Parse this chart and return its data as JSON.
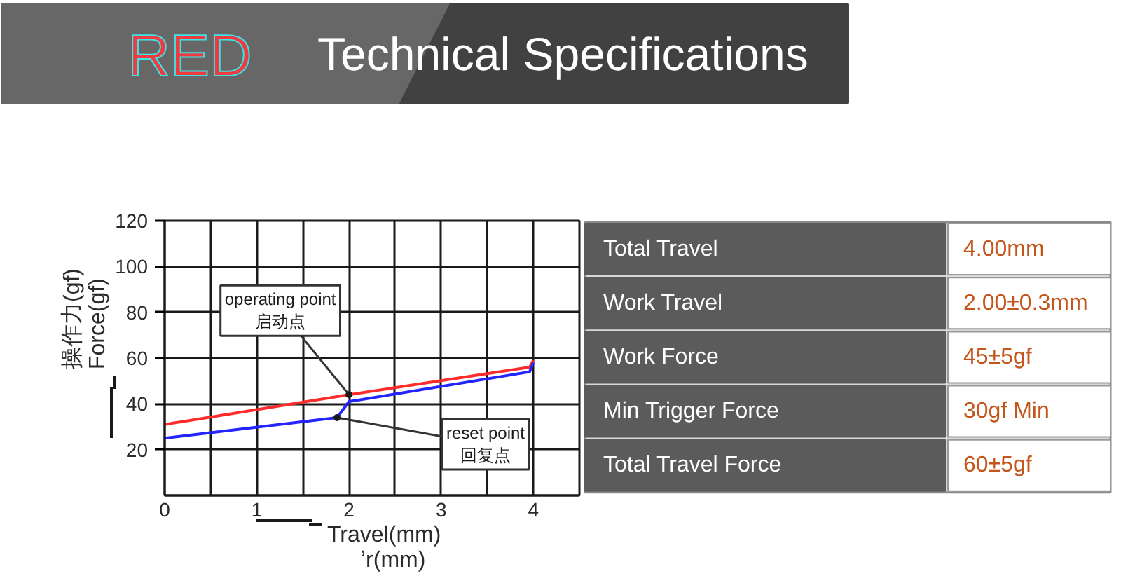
{
  "chart_data": [
    {
      "type": "line",
      "title": "RED",
      "subtitle": "Technical Specifications",
      "xlabel": "Travel(mm)\nʼr(mm)",
      "ylabel": "Force(gf)\n操作力(gf)",
      "xlim": [
        0,
        4.5
      ],
      "ylim": [
        0,
        120
      ],
      "xticks": [
        0,
        {
          "value": 0.5,
          "label": null
        },
        1,
        {
          "value": 1.5,
          "label": null
        },
        2,
        {
          "value": 2.5,
          "label": null
        },
        3,
        {
          "value": 3.5,
          "label": null
        },
        4,
        {
          "value": 4.5,
          "label": null
        }
      ],
      "yticks": [
        20,
        40,
        60,
        80,
        100,
        120
      ],
      "grid": true,
      "series": [
        {
          "color": "#ff2a2a",
          "x": [
            0,
            2,
            3.96,
            4
          ],
          "values": [
            31,
            44,
            56,
            59
          ]
        },
        {
          "color": "#2424ff",
          "x": [
            0,
            1.87,
            2,
            3.96,
            4
          ],
          "values": [
            25,
            34,
            41,
            54,
            58
          ]
        }
      ],
      "annotations": [
        {
          "text": "operating point\n启动点",
          "x": 2,
          "y": 44
        },
        {
          "text": "reset point\n回复点",
          "x": 1.87,
          "y": 34
        }
      ]
    },
    {
      "type": "other",
      "annotations": [
        "Total Travel",
        "4.00mm",
        "Work Travel",
        "2.00±0.3mm",
        "Work Force",
        "45±5gf",
        "Min Trigger Force",
        "30gf Min",
        "Total Travel Force",
        "60±5gf"
      ]
    }
  ]
}
